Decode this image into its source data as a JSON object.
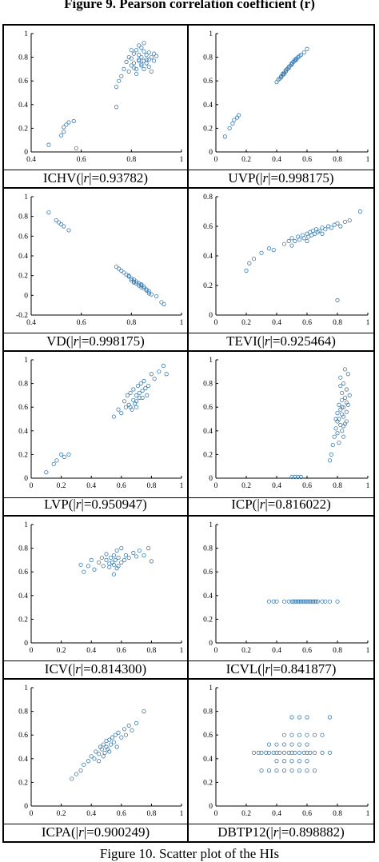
{
  "figure_top_caption": "Figure 9.  Pearson correlation coefficient (r)",
  "figure_caption": "Figure 10.  Scatter plot of the HIs",
  "marker_color": "#3b7bb0",
  "chart_data": [
    {
      "type": "scatter",
      "caption_name": "ICHV",
      "caption_r": "0.93782",
      "xlim": [
        0.4,
        1
      ],
      "ylim": [
        0,
        1
      ],
      "xticks": [
        "0.4",
        "0.6",
        "0.8",
        "1"
      ],
      "xtick_values": [
        0.4,
        0.6,
        0.8,
        1
      ],
      "yticks": [
        "0",
        "0.2",
        "0.4",
        "0.6",
        "0.8",
        "1"
      ],
      "ytick_values": [
        0,
        0.2,
        0.4,
        0.6,
        0.8,
        1
      ],
      "x": [
        0.47,
        0.52,
        0.53,
        0.53,
        0.54,
        0.55,
        0.57,
        0.58,
        0.74,
        0.74,
        0.75,
        0.76,
        0.77,
        0.78,
        0.79,
        0.8,
        0.8,
        0.81,
        0.81,
        0.82,
        0.82,
        0.83,
        0.83,
        0.83,
        0.84,
        0.84,
        0.85,
        0.85,
        0.85,
        0.86,
        0.86,
        0.87,
        0.87,
        0.88,
        0.88,
        0.89,
        0.89,
        0.9,
        0.8,
        0.82,
        0.84,
        0.86,
        0.81,
        0.83,
        0.85,
        0.79,
        0.87,
        0.84
      ],
      "y": [
        0.06,
        0.14,
        0.17,
        0.21,
        0.23,
        0.25,
        0.26,
        0.03,
        0.38,
        0.55,
        0.6,
        0.64,
        0.7,
        0.76,
        0.8,
        0.73,
        0.79,
        0.83,
        0.75,
        0.86,
        0.7,
        0.78,
        0.82,
        0.9,
        0.73,
        0.8,
        0.85,
        0.77,
        0.7,
        0.82,
        0.75,
        0.84,
        0.72,
        0.8,
        0.68,
        0.77,
        0.83,
        0.81,
        0.86,
        0.66,
        0.88,
        0.78,
        0.71,
        0.77,
        0.92,
        0.68,
        0.78,
        0.74
      ]
    },
    {
      "type": "scatter",
      "caption_name": "UVP",
      "caption_r": "0.998175",
      "xlim": [
        0,
        1
      ],
      "ylim": [
        0,
        1
      ],
      "xticks": [
        "0",
        "0.2",
        "0.4",
        "0.6",
        "0.8",
        "1"
      ],
      "xtick_values": [
        0,
        0.2,
        0.4,
        0.6,
        0.8,
        1
      ],
      "yticks": [
        "0",
        "0.2",
        "0.4",
        "0.6",
        "0.8",
        "1"
      ],
      "ytick_values": [
        0,
        0.2,
        0.4,
        0.6,
        0.8,
        1
      ],
      "x": [
        0.06,
        0.09,
        0.11,
        0.12,
        0.14,
        0.15,
        0.4,
        0.41,
        0.42,
        0.43,
        0.44,
        0.44,
        0.45,
        0.46,
        0.46,
        0.47,
        0.48,
        0.48,
        0.49,
        0.5,
        0.5,
        0.51,
        0.52,
        0.52,
        0.53,
        0.54,
        0.55,
        0.56,
        0.58,
        0.6,
        0.43,
        0.47,
        0.5,
        0.45,
        0.53
      ],
      "y": [
        0.13,
        0.2,
        0.24,
        0.27,
        0.29,
        0.31,
        0.59,
        0.61,
        0.62,
        0.64,
        0.65,
        0.66,
        0.67,
        0.68,
        0.69,
        0.7,
        0.71,
        0.72,
        0.73,
        0.74,
        0.75,
        0.76,
        0.77,
        0.78,
        0.79,
        0.8,
        0.81,
        0.82,
        0.84,
        0.87,
        0.63,
        0.7,
        0.74,
        0.66,
        0.78
      ]
    },
    {
      "type": "scatter",
      "caption_name": "VD",
      "caption_r": "0.998175",
      "xlim": [
        0.4,
        1
      ],
      "ylim": [
        -0.2,
        1
      ],
      "xticks": [
        "0.4",
        "0.6",
        "0.8",
        "1"
      ],
      "xtick_values": [
        0.4,
        0.6,
        0.8,
        1
      ],
      "yticks": [
        "-0.2",
        "0",
        "0.2",
        "0.4",
        "0.6",
        "0.8",
        "1"
      ],
      "ytick_values": [
        -0.2,
        0,
        0.2,
        0.4,
        0.6,
        0.8,
        1
      ],
      "x": [
        0.47,
        0.5,
        0.51,
        0.52,
        0.53,
        0.55,
        0.74,
        0.75,
        0.76,
        0.77,
        0.78,
        0.79,
        0.8,
        0.8,
        0.81,
        0.81,
        0.82,
        0.82,
        0.83,
        0.83,
        0.84,
        0.84,
        0.85,
        0.85,
        0.86,
        0.86,
        0.87,
        0.87,
        0.88,
        0.9,
        0.92,
        0.93,
        0.79,
        0.81,
        0.84
      ],
      "y": [
        0.84,
        0.76,
        0.74,
        0.72,
        0.7,
        0.66,
        0.29,
        0.27,
        0.25,
        0.23,
        0.21,
        0.19,
        0.17,
        0.15,
        0.16,
        0.13,
        0.12,
        0.14,
        0.1,
        0.12,
        0.08,
        0.1,
        0.07,
        0.09,
        0.06,
        0.05,
        0.04,
        0.02,
        0.01,
        -0.01,
        -0.07,
        -0.09,
        0.2,
        0.14,
        0.11
      ]
    },
    {
      "type": "scatter",
      "caption_name": "TEVI",
      "caption_r": "0.925464",
      "xlim": [
        0,
        1
      ],
      "ylim": [
        0,
        0.8
      ],
      "xticks": [
        "0",
        "0.2",
        "0.4",
        "0.6",
        "0.8",
        "1"
      ],
      "xtick_values": [
        0,
        0.2,
        0.4,
        0.6,
        0.8,
        1
      ],
      "yticks": [
        "0",
        "0.2",
        "0.4",
        "0.6",
        "0.8"
      ],
      "ytick_values": [
        0,
        0.2,
        0.4,
        0.6,
        0.8
      ],
      "x": [
        0.2,
        0.22,
        0.25,
        0.3,
        0.35,
        0.38,
        0.45,
        0.48,
        0.5,
        0.52,
        0.54,
        0.55,
        0.57,
        0.58,
        0.6,
        0.61,
        0.62,
        0.63,
        0.64,
        0.65,
        0.66,
        0.67,
        0.68,
        0.7,
        0.72,
        0.74,
        0.76,
        0.78,
        0.8,
        0.82,
        0.85,
        0.88,
        0.95,
        0.8,
        0.6,
        0.5,
        0.7
      ],
      "y": [
        0.3,
        0.35,
        0.38,
        0.42,
        0.45,
        0.44,
        0.48,
        0.5,
        0.52,
        0.5,
        0.53,
        0.51,
        0.54,
        0.52,
        0.55,
        0.53,
        0.56,
        0.54,
        0.57,
        0.55,
        0.58,
        0.56,
        0.57,
        0.59,
        0.58,
        0.6,
        0.59,
        0.61,
        0.62,
        0.6,
        0.63,
        0.64,
        0.7,
        0.1,
        0.5,
        0.47,
        0.55
      ]
    },
    {
      "type": "scatter",
      "caption_name": "LVP",
      "caption_r": "0.950947",
      "xlim": [
        0,
        1
      ],
      "ylim": [
        0,
        1
      ],
      "xticks": [
        "0",
        "0.2",
        "0.4",
        "0.6",
        "0.8",
        "1"
      ],
      "xtick_values": [
        0,
        0.2,
        0.4,
        0.6,
        0.8,
        1
      ],
      "yticks": [
        "0",
        "0.2",
        "0.4",
        "0.6",
        "0.8",
        "1"
      ],
      "ytick_values": [
        0,
        0.2,
        0.4,
        0.6,
        0.8,
        1
      ],
      "x": [
        0.1,
        0.15,
        0.17,
        0.2,
        0.22,
        0.25,
        0.55,
        0.58,
        0.6,
        0.62,
        0.63,
        0.64,
        0.65,
        0.66,
        0.67,
        0.68,
        0.68,
        0.69,
        0.7,
        0.7,
        0.71,
        0.72,
        0.72,
        0.73,
        0.74,
        0.75,
        0.76,
        0.77,
        0.78,
        0.8,
        0.82,
        0.85,
        0.88,
        0.9,
        0.66,
        0.7,
        0.74
      ],
      "y": [
        0.05,
        0.12,
        0.15,
        0.2,
        0.18,
        0.2,
        0.52,
        0.58,
        0.55,
        0.65,
        0.6,
        0.7,
        0.62,
        0.72,
        0.58,
        0.75,
        0.66,
        0.63,
        0.7,
        0.6,
        0.78,
        0.68,
        0.72,
        0.8,
        0.74,
        0.82,
        0.76,
        0.7,
        0.78,
        0.88,
        0.84,
        0.9,
        0.95,
        0.88,
        0.6,
        0.65,
        0.68
      ]
    },
    {
      "type": "scatter",
      "caption_name": "ICP",
      "caption_r": "0.816022",
      "xlim": [
        0,
        1
      ],
      "ylim": [
        0,
        1
      ],
      "xticks": [
        "0",
        "0.2",
        "0.4",
        "0.6",
        "0.8",
        "1"
      ],
      "xtick_values": [
        0,
        0.2,
        0.4,
        0.6,
        0.8,
        1
      ],
      "yticks": [
        "0",
        "0.2",
        "0.4",
        "0.6",
        "0.8",
        "1"
      ],
      "ytick_values": [
        0,
        0.2,
        0.4,
        0.6,
        0.8,
        1
      ],
      "x": [
        0.5,
        0.52,
        0.54,
        0.56,
        0.75,
        0.76,
        0.77,
        0.78,
        0.79,
        0.8,
        0.8,
        0.81,
        0.81,
        0.82,
        0.82,
        0.83,
        0.83,
        0.83,
        0.84,
        0.84,
        0.84,
        0.85,
        0.85,
        0.86,
        0.86,
        0.87,
        0.87,
        0.88,
        0.8,
        0.82,
        0.84,
        0.86,
        0.81,
        0.83,
        0.85,
        0.79,
        0.82,
        0.84,
        0.86,
        0.83
      ],
      "y": [
        0.01,
        0.01,
        0.01,
        0.01,
        0.15,
        0.2,
        0.28,
        0.35,
        0.42,
        0.48,
        0.55,
        0.5,
        0.62,
        0.45,
        0.58,
        0.4,
        0.66,
        0.72,
        0.52,
        0.6,
        0.8,
        0.46,
        0.68,
        0.56,
        0.75,
        0.62,
        0.88,
        0.7,
        0.38,
        0.85,
        0.44,
        0.64,
        0.3,
        0.54,
        0.92,
        0.5,
        0.78,
        0.35,
        0.48,
        0.6
      ]
    },
    {
      "type": "scatter",
      "caption_name": "ICV",
      "caption_r": "0.814300",
      "xlim": [
        0,
        1
      ],
      "ylim": [
        0,
        1
      ],
      "xticks": [
        "0",
        "0.2",
        "0.4",
        "0.6",
        "0.8",
        "1"
      ],
      "xtick_values": [
        0,
        0.2,
        0.4,
        0.6,
        0.8,
        1
      ],
      "yticks": [
        "0",
        "0.2",
        "0.4",
        "0.6",
        "0.8",
        "1"
      ],
      "ytick_values": [
        0,
        0.2,
        0.4,
        0.6,
        0.8,
        1
      ],
      "x": [
        0.33,
        0.35,
        0.38,
        0.4,
        0.42,
        0.45,
        0.47,
        0.48,
        0.5,
        0.5,
        0.52,
        0.53,
        0.54,
        0.55,
        0.55,
        0.56,
        0.57,
        0.58,
        0.58,
        0.6,
        0.6,
        0.62,
        0.63,
        0.65,
        0.68,
        0.7,
        0.72,
        0.75,
        0.78,
        0.8,
        0.55,
        0.57,
        0.52
      ],
      "y": [
        0.66,
        0.6,
        0.65,
        0.7,
        0.62,
        0.68,
        0.72,
        0.65,
        0.7,
        0.75,
        0.64,
        0.72,
        0.68,
        0.66,
        0.74,
        0.7,
        0.78,
        0.65,
        0.72,
        0.68,
        0.8,
        0.7,
        0.74,
        0.72,
        0.76,
        0.73,
        0.78,
        0.74,
        0.8,
        0.69,
        0.58,
        0.63,
        0.67
      ]
    },
    {
      "type": "scatter",
      "caption_name": "ICVL",
      "caption_r": "0.841877",
      "xlim": [
        0,
        1
      ],
      "ylim": [
        0,
        1
      ],
      "xticks": [
        "0",
        "0.2",
        "0.4",
        "0.6",
        "0.8",
        "1"
      ],
      "xtick_values": [
        0,
        0.2,
        0.4,
        0.6,
        0.8,
        1
      ],
      "yticks": [
        "0",
        "0.2",
        "0.4",
        "0.6",
        "0.8",
        "1"
      ],
      "ytick_values": [
        0,
        0.2,
        0.4,
        0.6,
        0.8,
        1
      ],
      "x": [
        0.35,
        0.38,
        0.4,
        0.45,
        0.48,
        0.5,
        0.51,
        0.52,
        0.53,
        0.54,
        0.55,
        0.56,
        0.57,
        0.58,
        0.59,
        0.6,
        0.61,
        0.62,
        0.63,
        0.64,
        0.65,
        0.66,
        0.67,
        0.7,
        0.72,
        0.75,
        0.8
      ],
      "y": [
        0.35,
        0.35,
        0.35,
        0.35,
        0.35,
        0.35,
        0.35,
        0.35,
        0.35,
        0.35,
        0.35,
        0.35,
        0.35,
        0.35,
        0.35,
        0.35,
        0.35,
        0.35,
        0.35,
        0.35,
        0.35,
        0.35,
        0.35,
        0.35,
        0.35,
        0.35,
        0.35
      ]
    },
    {
      "type": "scatter",
      "caption_name": "ICPA",
      "caption_r": "0.900249",
      "xlim": [
        0,
        1
      ],
      "ylim": [
        0,
        1
      ],
      "xticks": [
        "0",
        "0.2",
        "0.4",
        "0.6",
        "0.8",
        "1"
      ],
      "xtick_values": [
        0,
        0.2,
        0.4,
        0.6,
        0.8,
        1
      ],
      "yticks": [
        "0",
        "0.2",
        "0.4",
        "0.6",
        "0.8",
        "1"
      ],
      "ytick_values": [
        0,
        0.2,
        0.4,
        0.6,
        0.8,
        1
      ],
      "x": [
        0.27,
        0.3,
        0.33,
        0.35,
        0.38,
        0.4,
        0.42,
        0.43,
        0.45,
        0.46,
        0.47,
        0.48,
        0.49,
        0.5,
        0.5,
        0.51,
        0.52,
        0.53,
        0.54,
        0.55,
        0.56,
        0.57,
        0.58,
        0.6,
        0.62,
        0.63,
        0.65,
        0.67,
        0.7,
        0.75,
        0.48,
        0.52,
        0.45
      ],
      "y": [
        0.23,
        0.27,
        0.3,
        0.35,
        0.38,
        0.42,
        0.4,
        0.46,
        0.44,
        0.5,
        0.48,
        0.52,
        0.45,
        0.55,
        0.5,
        0.48,
        0.56,
        0.52,
        0.58,
        0.54,
        0.6,
        0.5,
        0.62,
        0.58,
        0.65,
        0.6,
        0.68,
        0.64,
        0.7,
        0.8,
        0.42,
        0.46,
        0.38
      ]
    },
    {
      "type": "scatter",
      "caption_name": "DBTP12",
      "caption_r": "0.898882",
      "xlim": [
        0,
        1
      ],
      "ylim": [
        0,
        1
      ],
      "xticks": [
        "0",
        "0.2",
        "0.4",
        "0.6",
        "0.8",
        "1"
      ],
      "xtick_values": [
        0,
        0.2,
        0.4,
        0.6,
        0.8,
        1
      ],
      "yticks": [
        "0",
        "0.2",
        "0.4",
        "0.6",
        "0.8",
        "1"
      ],
      "ytick_values": [
        0,
        0.2,
        0.4,
        0.6,
        0.8,
        1
      ],
      "x": [
        0.25,
        0.28,
        0.3,
        0.33,
        0.35,
        0.38,
        0.4,
        0.42,
        0.45,
        0.48,
        0.5,
        0.52,
        0.55,
        0.58,
        0.6,
        0.62,
        0.65,
        0.7,
        0.75,
        0.3,
        0.35,
        0.4,
        0.45,
        0.5,
        0.55,
        0.6,
        0.65,
        0.35,
        0.4,
        0.45,
        0.5,
        0.55,
        0.6,
        0.45,
        0.5,
        0.55,
        0.6,
        0.65,
        0.5,
        0.55,
        0.6,
        0.4,
        0.45,
        0.5,
        0.55,
        0.6,
        0.7,
        0.75
      ],
      "y": [
        0.45,
        0.45,
        0.45,
        0.45,
        0.45,
        0.45,
        0.45,
        0.45,
        0.45,
        0.45,
        0.45,
        0.45,
        0.45,
        0.45,
        0.45,
        0.45,
        0.45,
        0.45,
        0.45,
        0.3,
        0.3,
        0.3,
        0.3,
        0.3,
        0.3,
        0.3,
        0.3,
        0.52,
        0.52,
        0.52,
        0.52,
        0.52,
        0.52,
        0.6,
        0.6,
        0.6,
        0.6,
        0.6,
        0.75,
        0.75,
        0.75,
        0.38,
        0.38,
        0.38,
        0.38,
        0.38,
        0.6,
        0.75
      ]
    }
  ]
}
